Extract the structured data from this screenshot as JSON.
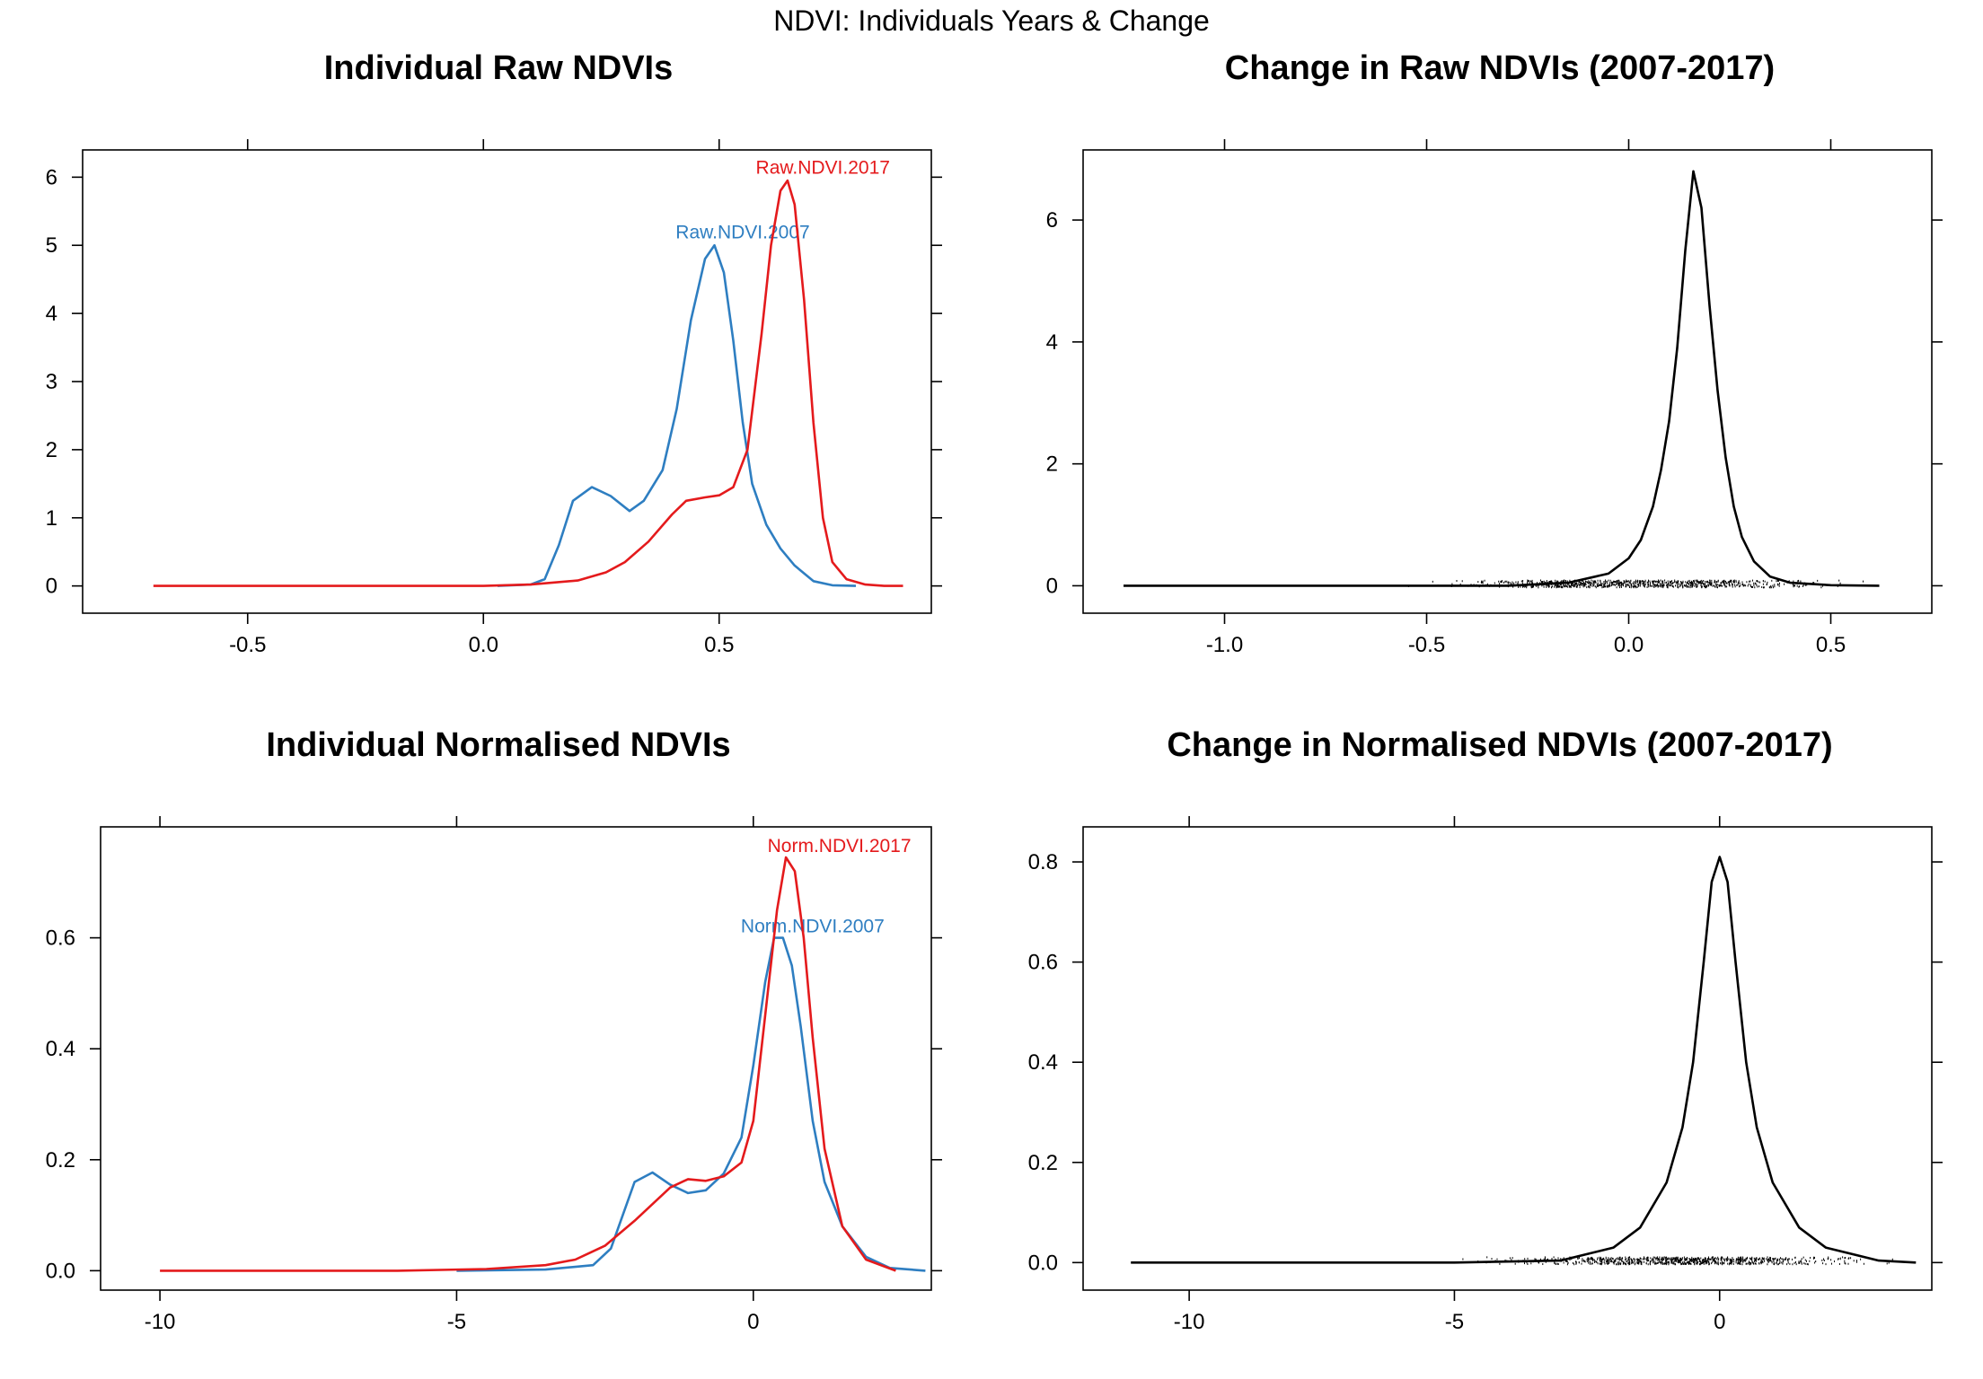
{
  "figure": {
    "title": "NDVI: Individuals Years & Change"
  },
  "chart_data": [
    {
      "type": "line",
      "subtype": "density",
      "title": "Individual Raw NDVIs",
      "xlim": [
        -0.85,
        0.95
      ],
      "ylim": [
        -0.4,
        6.4
      ],
      "x_ticks": [
        "-0.5",
        "0.0",
        "0.5"
      ],
      "x_tick_values": [
        -0.5,
        0.0,
        0.5
      ],
      "y_ticks": [
        "0",
        "1",
        "2",
        "3",
        "4",
        "5",
        "6"
      ],
      "y_tick_values": [
        0,
        1,
        2,
        3,
        4,
        5,
        6
      ],
      "series": [
        {
          "name": "Raw.NDVI.2007",
          "color": "#2E7EC1",
          "label_at": [
            0.55,
            5.1
          ],
          "x": [
            0.03,
            0.1,
            0.13,
            0.16,
            0.19,
            0.23,
            0.27,
            0.31,
            0.34,
            0.38,
            0.41,
            0.44,
            0.47,
            0.49,
            0.51,
            0.53,
            0.55,
            0.57,
            0.6,
            0.63,
            0.66,
            0.7,
            0.74,
            0.79
          ],
          "y": [
            0.0,
            0.02,
            0.1,
            0.6,
            1.25,
            1.45,
            1.32,
            1.1,
            1.25,
            1.7,
            2.6,
            3.9,
            4.8,
            5.0,
            4.6,
            3.6,
            2.4,
            1.5,
            0.9,
            0.55,
            0.3,
            0.07,
            0.01,
            0.0
          ]
        },
        {
          "name": "Raw.NDVI.2017",
          "color": "#E41A1C",
          "label_at": [
            0.72,
            6.05
          ],
          "x": [
            -0.7,
            -0.3,
            0.0,
            0.1,
            0.2,
            0.26,
            0.3,
            0.35,
            0.4,
            0.43,
            0.47,
            0.5,
            0.53,
            0.56,
            0.59,
            0.61,
            0.63,
            0.645,
            0.66,
            0.68,
            0.7,
            0.72,
            0.74,
            0.77,
            0.81,
            0.85,
            0.89
          ],
          "y": [
            0.0,
            0.0,
            0.0,
            0.02,
            0.08,
            0.2,
            0.35,
            0.65,
            1.05,
            1.25,
            1.3,
            1.33,
            1.45,
            2.0,
            3.7,
            5.0,
            5.8,
            5.95,
            5.6,
            4.2,
            2.4,
            1.0,
            0.35,
            0.1,
            0.02,
            0.0,
            0.0
          ]
        }
      ]
    },
    {
      "type": "line",
      "subtype": "density with rug",
      "title": "Change in Raw NDVIs (2007-2017)",
      "xlim": [
        -1.35,
        0.75
      ],
      "ylim": [
        -0.45,
        7.15
      ],
      "x_ticks": [
        "-1.0",
        "-0.5",
        "0.0",
        "0.5"
      ],
      "x_tick_values": [
        -1.0,
        -0.5,
        0.0,
        0.5
      ],
      "y_ticks": [
        "0",
        "2",
        "4",
        "6"
      ],
      "y_tick_values": [
        0,
        2,
        4,
        6
      ],
      "rug_range": [
        -0.6,
        0.62
      ],
      "series": [
        {
          "color": "#000000",
          "x": [
            -1.25,
            -0.6,
            -0.3,
            -0.15,
            -0.05,
            0.0,
            0.03,
            0.06,
            0.08,
            0.1,
            0.12,
            0.14,
            0.16,
            0.18,
            0.2,
            0.22,
            0.24,
            0.26,
            0.28,
            0.31,
            0.35,
            0.4,
            0.5,
            0.62
          ],
          "y": [
            0.0,
            0.0,
            0.0,
            0.05,
            0.2,
            0.45,
            0.75,
            1.3,
            1.9,
            2.7,
            3.9,
            5.5,
            6.8,
            6.2,
            4.6,
            3.2,
            2.1,
            1.3,
            0.8,
            0.4,
            0.15,
            0.05,
            0.01,
            0.0
          ]
        }
      ]
    },
    {
      "type": "line",
      "subtype": "density",
      "title": "Individual Normalised NDVIs",
      "xlim": [
        -11.0,
        3.0
      ],
      "ylim": [
        -0.035,
        0.8
      ],
      "x_ticks": [
        "-10",
        "-5",
        "0"
      ],
      "x_tick_values": [
        -10,
        -5,
        0
      ],
      "y_ticks": [
        "0.0",
        "0.2",
        "0.4",
        "0.6"
      ],
      "y_tick_values": [
        0.0,
        0.2,
        0.4,
        0.6
      ],
      "series": [
        {
          "name": "Norm.NDVI.2007",
          "color": "#2E7EC1",
          "label_at": [
            1.0,
            0.61
          ],
          "x": [
            -5.0,
            -3.5,
            -2.7,
            -2.4,
            -2.2,
            -2.0,
            -1.7,
            -1.4,
            -1.1,
            -0.8,
            -0.5,
            -0.2,
            0.0,
            0.2,
            0.35,
            0.5,
            0.65,
            0.8,
            1.0,
            1.2,
            1.5,
            1.9,
            2.3,
            2.9
          ],
          "y": [
            0.0,
            0.002,
            0.01,
            0.04,
            0.1,
            0.16,
            0.177,
            0.155,
            0.14,
            0.145,
            0.175,
            0.24,
            0.37,
            0.52,
            0.6,
            0.6,
            0.55,
            0.44,
            0.27,
            0.16,
            0.08,
            0.025,
            0.005,
            0.0
          ]
        },
        {
          "name": "Norm.NDVI.2017",
          "color": "#E41A1C",
          "label_at": [
            1.45,
            0.755
          ],
          "x": [
            -10.0,
            -6.0,
            -4.5,
            -3.5,
            -3.0,
            -2.5,
            -2.0,
            -1.7,
            -1.4,
            -1.1,
            -0.8,
            -0.5,
            -0.2,
            0.0,
            0.2,
            0.4,
            0.55,
            0.7,
            0.85,
            1.0,
            1.2,
            1.5,
            1.9,
            2.4
          ],
          "y": [
            0.0,
            0.0,
            0.003,
            0.01,
            0.02,
            0.045,
            0.09,
            0.12,
            0.15,
            0.165,
            0.162,
            0.17,
            0.195,
            0.27,
            0.46,
            0.65,
            0.745,
            0.72,
            0.6,
            0.42,
            0.22,
            0.08,
            0.02,
            0.0
          ]
        }
      ]
    },
    {
      "type": "line",
      "subtype": "density with rug",
      "title": "Change in Normalised NDVIs (2007-2017)",
      "xlim": [
        -12.0,
        4.0
      ],
      "ylim": [
        -0.055,
        0.87
      ],
      "x_ticks": [
        "-10",
        "-5",
        "0"
      ],
      "x_tick_values": [
        -10,
        -5,
        0
      ],
      "y_ticks": [
        "0.0",
        "0.2",
        "0.4",
        "0.6",
        "0.8"
      ],
      "y_tick_values": [
        0.0,
        0.2,
        0.4,
        0.6,
        0.8
      ],
      "rug_range": [
        -5.2,
        3.7
      ],
      "series": [
        {
          "color": "#000000",
          "x": [
            -11.1,
            -5.0,
            -3.0,
            -2.0,
            -1.5,
            -1.0,
            -0.7,
            -0.5,
            -0.3,
            -0.15,
            0.0,
            0.15,
            0.3,
            0.5,
            0.7,
            1.0,
            1.5,
            2.0,
            3.0,
            3.7
          ],
          "y": [
            0.0,
            0.0,
            0.004,
            0.03,
            0.07,
            0.16,
            0.27,
            0.4,
            0.6,
            0.76,
            0.81,
            0.76,
            0.6,
            0.4,
            0.27,
            0.16,
            0.07,
            0.03,
            0.004,
            0.0
          ]
        }
      ]
    }
  ]
}
